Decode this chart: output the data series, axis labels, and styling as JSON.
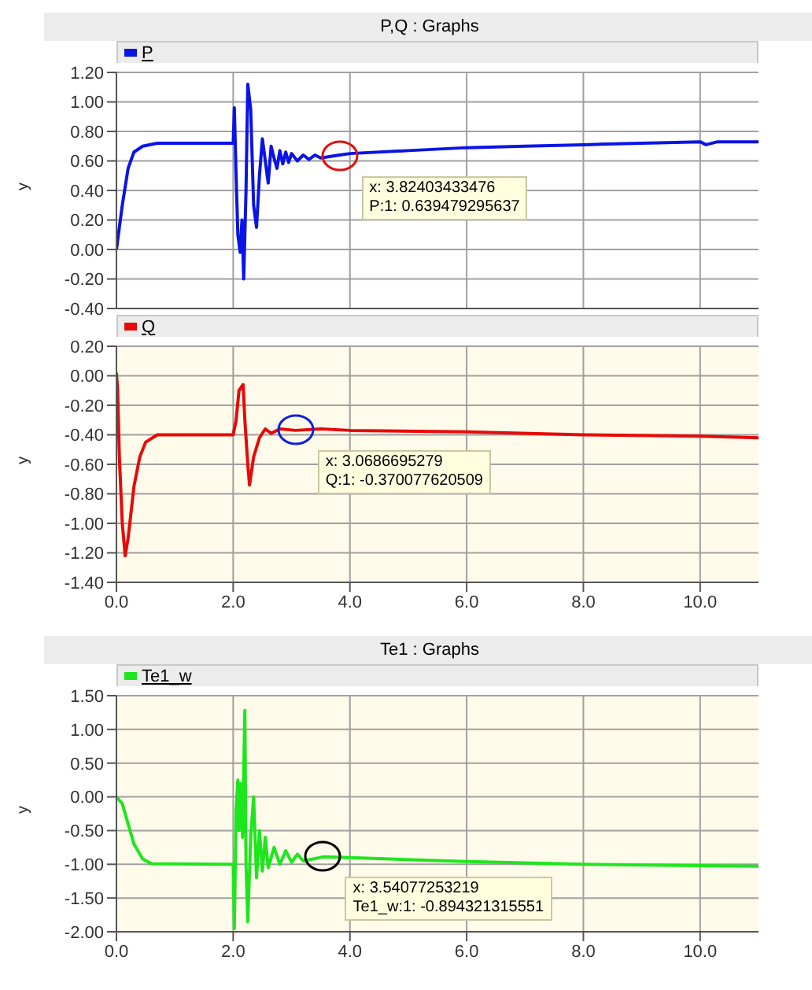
{
  "chart_data": [
    {
      "type": "line",
      "title": "P,Q : Graphs",
      "ylabel": "y",
      "xlim": [
        0,
        11
      ],
      "xticks": [
        0,
        2,
        4,
        6,
        8,
        10
      ],
      "ylim": [
        -0.4,
        1.2
      ],
      "yticks": [
        {
          "value": -0.4,
          "label": "-0.40"
        },
        {
          "value": -0.2,
          "label": "-0.20"
        },
        {
          "value": 0,
          "label": "0.00"
        },
        {
          "value": 0.2,
          "label": "0.20"
        },
        {
          "value": 0.4,
          "label": "0.40"
        },
        {
          "value": 0.6,
          "label": "0.60"
        },
        {
          "value": 0.8,
          "label": "0.80"
        },
        {
          "value": 1,
          "label": "1.00"
        },
        {
          "value": 1.2,
          "label": "1.20"
        }
      ],
      "tick_labels": "y",
      "grid": true,
      "legend": "top left",
      "marker": "none",
      "line_style": "solid",
      "x": [
        0,
        0.1,
        0.2,
        0.3,
        0.45,
        0.7,
        2.0,
        2.02,
        2.05,
        2.08,
        2.12,
        2.15,
        2.18,
        2.22,
        2.25,
        2.3,
        2.35,
        2.4,
        2.45,
        2.5,
        2.55,
        2.6,
        2.65,
        2.7,
        2.75,
        2.8,
        2.85,
        2.9,
        2.95,
        3.0,
        3.1,
        3.2,
        3.3,
        3.4,
        3.5,
        3.82,
        4.0,
        5,
        6,
        7,
        8,
        9,
        10,
        10.1,
        10.3,
        11
      ],
      "series": [
        {
          "name": "P",
          "color": "#0a14e6",
          "values": [
            0,
            0.3,
            0.55,
            0.66,
            0.7,
            0.72,
            0.72,
            0.96,
            0.5,
            0.1,
            -0.02,
            0.2,
            -0.2,
            0.4,
            1.12,
            0.95,
            0.3,
            0.15,
            0.5,
            0.75,
            0.6,
            0.45,
            0.7,
            0.62,
            0.55,
            0.67,
            0.58,
            0.66,
            0.59,
            0.65,
            0.6,
            0.64,
            0.61,
            0.64,
            0.62,
            0.64,
            0.65,
            0.67,
            0.69,
            0.7,
            0.71,
            0.72,
            0.73,
            0.71,
            0.73,
            0.73
          ]
        }
      ],
      "annotations": [
        {
          "text": "x: 3.82403433476\nP:1: 0.639479295637",
          "x": 3.82,
          "y": 0.64
        }
      ]
    },
    {
      "type": "line",
      "ylabel": "y",
      "xlim": [
        0,
        11
      ],
      "xticks": [
        {
          "value": 0,
          "label": "0.0"
        },
        {
          "value": 2,
          "label": "2.0"
        },
        {
          "value": 4,
          "label": "4.0"
        },
        {
          "value": 6,
          "label": "6.0"
        },
        {
          "value": 8,
          "label": "8.0"
        },
        {
          "value": 10,
          "label": "10.0"
        }
      ],
      "ylim": [
        -1.4,
        0.2
      ],
      "yticks": [
        {
          "value": -1.4,
          "label": "-1.40"
        },
        {
          "value": -1.2,
          "label": "-1.20"
        },
        {
          "value": -1,
          "label": "-1.00"
        },
        {
          "value": -0.8,
          "label": "-0.80"
        },
        {
          "value": -0.6,
          "label": "-0.60"
        },
        {
          "value": -0.4,
          "label": "-0.40"
        },
        {
          "value": -0.2,
          "label": "-0.20"
        },
        {
          "value": 0,
          "label": "0.00"
        },
        {
          "value": 0.2,
          "label": "0.20"
        }
      ],
      "grid": true,
      "legend": "top left",
      "marker": "none",
      "line_style": "solid",
      "x": [
        0,
        0.02,
        0.05,
        0.1,
        0.15,
        0.2,
        0.3,
        0.4,
        0.5,
        0.7,
        2.0,
        2.05,
        2.1,
        2.17,
        2.2,
        2.25,
        2.28,
        2.35,
        2.45,
        2.55,
        2.65,
        2.8,
        3.07,
        3.5,
        4,
        6,
        8,
        10,
        11
      ],
      "series": [
        {
          "name": "Q",
          "color": "#e60a0a",
          "values": [
            0.02,
            -0.1,
            -0.55,
            -1.0,
            -1.22,
            -1.1,
            -0.75,
            -0.55,
            -0.45,
            -0.4,
            -0.4,
            -0.3,
            -0.1,
            -0.06,
            -0.3,
            -0.6,
            -0.74,
            -0.55,
            -0.42,
            -0.36,
            -0.39,
            -0.36,
            -0.37,
            -0.36,
            -0.37,
            -0.38,
            -0.4,
            -0.41,
            -0.42
          ]
        }
      ],
      "annotations": [
        {
          "text": "x: 3.0686695279\nQ:1: -0.370077620509",
          "x": 3.07,
          "y": -0.37
        }
      ]
    },
    {
      "type": "line",
      "title": "Te1 : Graphs",
      "ylabel": "y",
      "xlim": [
        0,
        11
      ],
      "xticks": [
        {
          "value": 0,
          "label": "0.0"
        },
        {
          "value": 2,
          "label": "2.0"
        },
        {
          "value": 4,
          "label": "4.0"
        },
        {
          "value": 6,
          "label": "6.0"
        },
        {
          "value": 8,
          "label": "8.0"
        },
        {
          "value": 10,
          "label": "10.0"
        }
      ],
      "ylim": [
        -2,
        1.5
      ],
      "yticks": [
        {
          "value": -2,
          "label": "-2.00"
        },
        {
          "value": -1.5,
          "label": "-1.50"
        },
        {
          "value": -1,
          "label": "-1.00"
        },
        {
          "value": -0.5,
          "label": "-0.50"
        },
        {
          "value": 0,
          "label": "0.00"
        },
        {
          "value": 0.5,
          "label": "0.50"
        },
        {
          "value": 1,
          "label": "1.00"
        },
        {
          "value": 1.5,
          "label": "1.50"
        }
      ],
      "grid": true,
      "legend": "top left",
      "marker": "none",
      "line_style": "solid",
      "x": [
        0,
        0.1,
        0.2,
        0.3,
        0.45,
        0.6,
        2.0,
        2.02,
        2.05,
        2.08,
        2.1,
        2.13,
        2.16,
        2.2,
        2.22,
        2.25,
        2.3,
        2.35,
        2.4,
        2.45,
        2.5,
        2.55,
        2.6,
        2.7,
        2.8,
        2.9,
        3.0,
        3.1,
        3.2,
        3.54,
        4,
        6,
        8,
        10,
        11
      ],
      "series": [
        {
          "name": "Te1_w",
          "color": "#1ee61e",
          "values": [
            0,
            -0.1,
            -0.4,
            -0.7,
            -0.92,
            -0.99,
            -1.0,
            -1.95,
            -0.2,
            0.25,
            -0.5,
            0.2,
            -0.6,
            1.28,
            -1.0,
            -1.85,
            -0.6,
            0,
            -1.2,
            -0.5,
            -1.1,
            -0.6,
            -1.05,
            -0.75,
            -1.0,
            -0.8,
            -0.97,
            -0.85,
            -0.95,
            -0.89,
            -0.9,
            -0.96,
            -1.0,
            -1.02,
            -1.03
          ]
        }
      ],
      "annotations": [
        {
          "text": "x: 3.54077253219\nTe1_w:1: -0.894321315551",
          "x": 3.54,
          "y": -0.89
        }
      ]
    }
  ]
}
